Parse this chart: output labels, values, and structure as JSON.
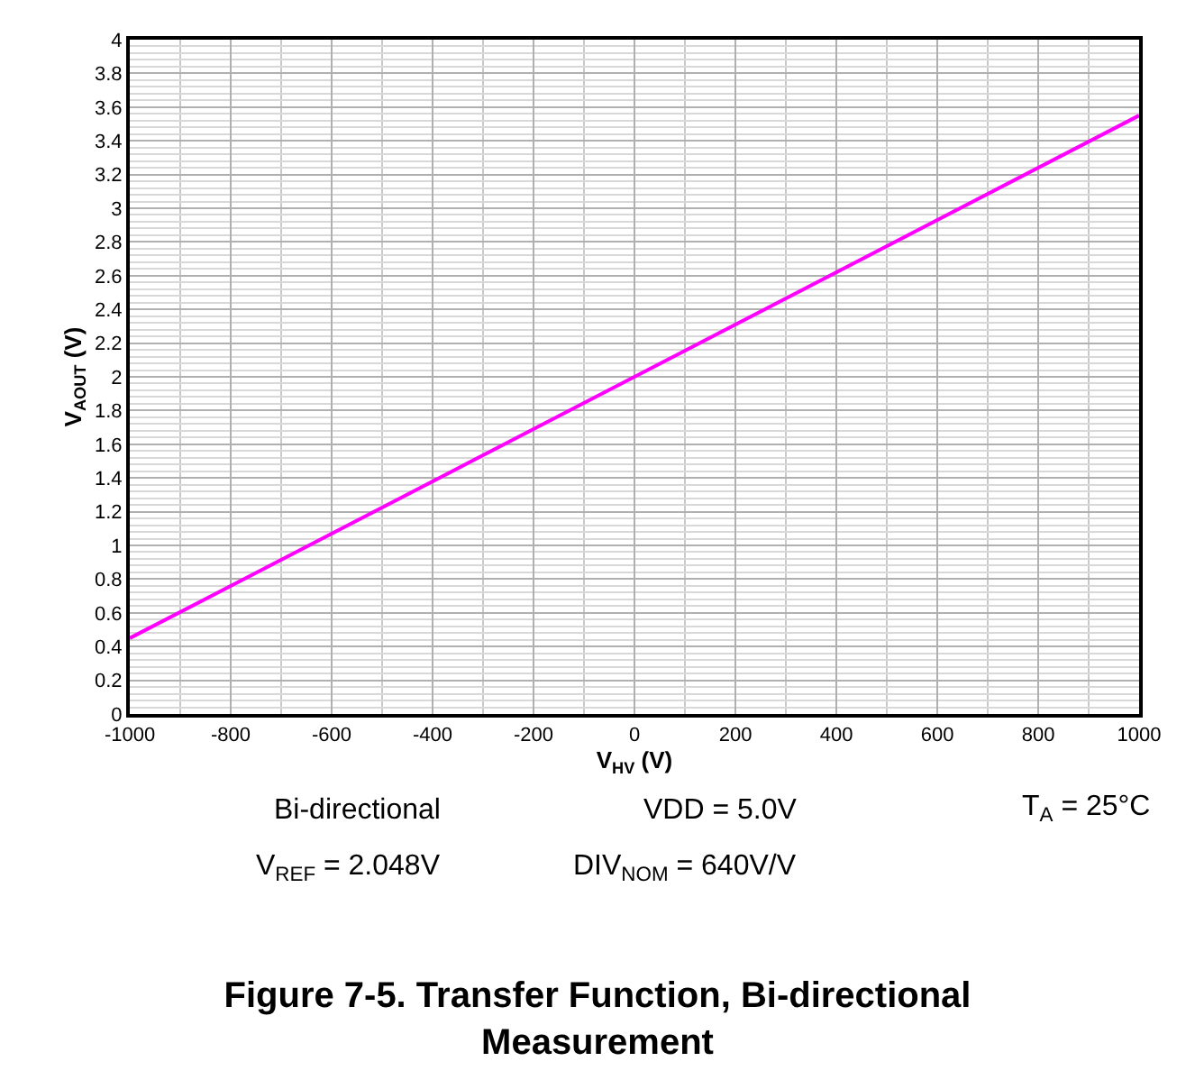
{
  "chart_data": {
    "type": "line",
    "title": "Figure 7-5. Transfer Function, Bi-directional\nMeasurement",
    "xlabel": "V$_{HV}$ (V)",
    "ylabel": "V$_{AOUT}$ (V)",
    "x": [
      -1000,
      0,
      1000
    ],
    "series": [
      {
        "color": "#ff00ff",
        "values": [
          0.45,
          2.0,
          3.55
        ]
      }
    ],
    "xlim": [
      -1000,
      1000
    ],
    "xticks": [
      -1000,
      -800,
      -600,
      -400,
      -200,
      0,
      200,
      400,
      600,
      800,
      1000
    ],
    "ylim": [
      0,
      4
    ],
    "yticks": [
      0,
      0.2,
      0.4,
      0.6,
      0.8,
      1,
      1.2,
      1.4,
      1.6,
      1.8,
      2,
      2.2,
      2.4,
      2.6,
      2.8,
      3,
      3.2,
      3.4,
      3.6,
      3.8,
      4
    ],
    "grid": true,
    "legend": false,
    "marker": "none",
    "line_style": "solid",
    "annotations": [
      "Bi-directional",
      "VDD = 5.0V",
      "T$_{A}$ = 25°C",
      "V$_{REF}$ = 2.048V",
      "DIV$_{NOM}$ = 640V/V"
    ]
  }
}
